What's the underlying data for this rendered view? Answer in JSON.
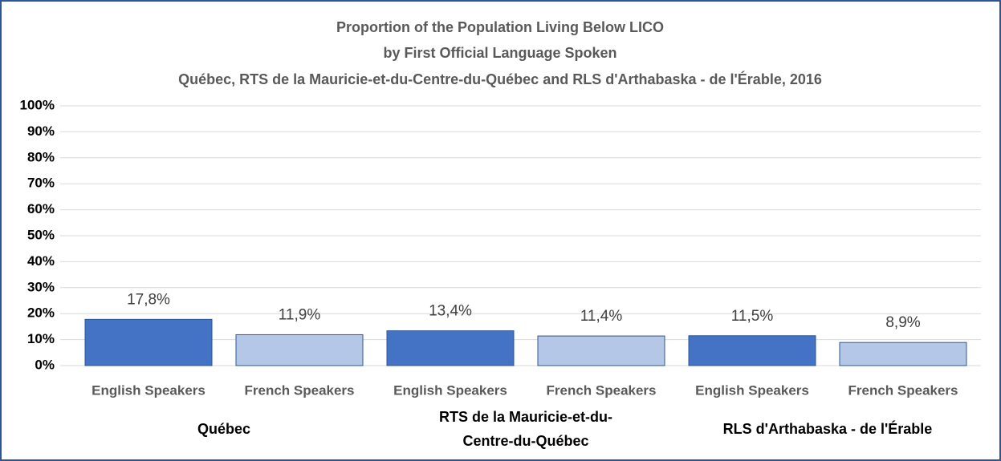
{
  "chart_data": {
    "type": "bar",
    "title": [
      "Proportion of the Population Living Below LICO",
      "by First Official Language Spoken",
      "Québec, RTS de la Mauricie-et-du-Centre-du-Québec and RLS d'Arthabaska - de l'Érable, 2016"
    ],
    "categories": [
      "Québec",
      "RTS de la Mauricie-et-du-Centre-du-Québec",
      "RLS d'Arthabaska - de l'Érable"
    ],
    "series": [
      {
        "name": "English Speakers",
        "color": "#4472c4",
        "values": [
          17.8,
          13.4,
          11.5
        ],
        "value_labels": [
          "17,8%",
          "13,4%",
          "11,5%"
        ]
      },
      {
        "name": "French Speakers",
        "color": "#b4c7e7",
        "values": [
          11.9,
          11.4,
          8.9
        ],
        "value_labels": [
          "11,9%",
          "11,4%",
          "8,9%"
        ]
      }
    ],
    "ylim": [
      0,
      100
    ],
    "yticks": [
      {
        "value": 0,
        "label": "0%"
      },
      {
        "value": 10,
        "label": "10%"
      },
      {
        "value": 20,
        "label": "20%"
      },
      {
        "value": 30,
        "label": "30%"
      },
      {
        "value": 40,
        "label": "40%"
      },
      {
        "value": 50,
        "label": "50%"
      },
      {
        "value": 60,
        "label": "60%"
      },
      {
        "value": 70,
        "label": "70%"
      },
      {
        "value": 80,
        "label": "80%"
      },
      {
        "value": 90,
        "label": "90%"
      },
      {
        "value": 100,
        "label": "100%"
      }
    ],
    "grid": true
  }
}
